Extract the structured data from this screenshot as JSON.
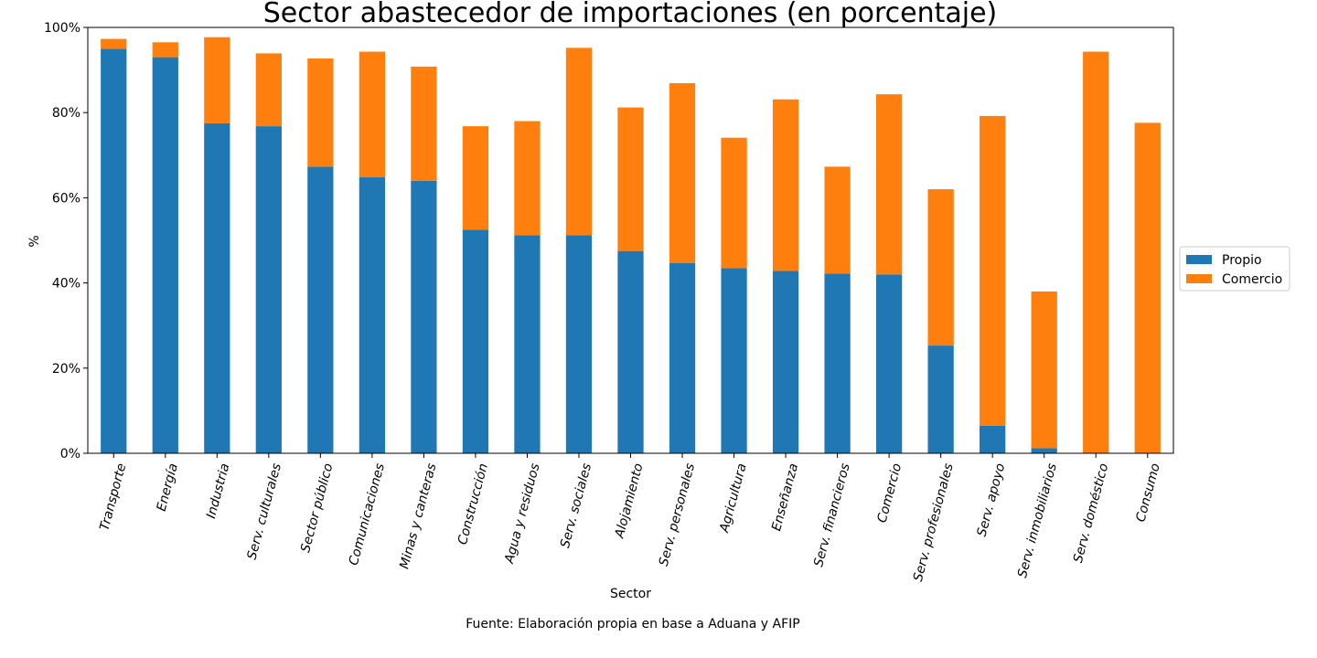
{
  "chart_data": {
    "type": "bar",
    "stacked": true,
    "title": "Sector abastecedor de importaciones (en porcentaje)",
    "xlabel": "Sector",
    "ylabel": "%",
    "ylim": [
      0,
      100
    ],
    "yticks": [
      0,
      20,
      40,
      60,
      80,
      100
    ],
    "ytick_labels": [
      "0%",
      "20%",
      "40%",
      "60%",
      "80%",
      "100%"
    ],
    "grid": false,
    "legend_position": "right",
    "source": "Fuente: Elaboración propia en base a Aduana y AFIP",
    "categories": [
      "Transporte",
      "Energía",
      "Industria",
      "Serv. culturales",
      "Sector público",
      "Comunicaciones",
      "Minas y canteras",
      "Construcción",
      "Agua y residuos",
      "Serv. sociales",
      "Alojamiento",
      "Serv. personales",
      "Agricultura",
      "Enseñanza",
      "Serv. financieros",
      "Comercio",
      "Serv. profesionales",
      "Serv. apoyo",
      "Serv. inmobiliarios",
      "Serv. doméstico",
      "Consumo"
    ],
    "series": [
      {
        "name": "Propio",
        "color": "#1f77b4",
        "values": [
          95.0,
          93.0,
          77.5,
          76.8,
          67.3,
          64.8,
          64.0,
          52.5,
          51.2,
          51.2,
          47.5,
          44.7,
          43.5,
          42.8,
          42.2,
          42.0,
          25.3,
          6.5,
          1.2,
          0.0,
          0.0
        ]
      },
      {
        "name": "Comercio",
        "color": "#ff7f0e",
        "values": [
          2.3,
          3.5,
          20.2,
          17.1,
          25.4,
          29.5,
          26.8,
          24.3,
          26.8,
          44.0,
          33.7,
          42.2,
          30.6,
          40.3,
          25.1,
          42.3,
          36.7,
          72.7,
          36.8,
          94.3,
          77.6
        ]
      }
    ]
  }
}
